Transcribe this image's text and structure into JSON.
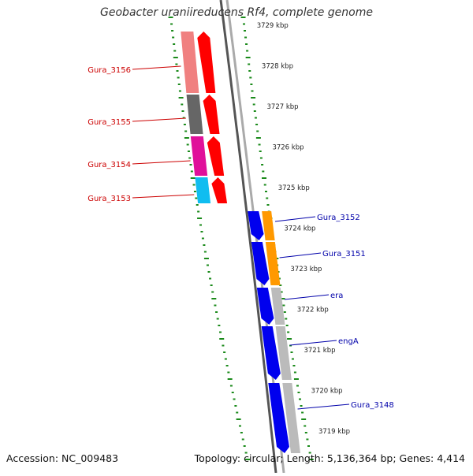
{
  "title": "Geobacter uraniireducens Rf4, complete genome",
  "footer": {
    "accession": "Accession: NC_009483",
    "summary": "Topology: circular; Length: 5,136,364 bp; Genes: 4,414"
  },
  "colors": {
    "forward_label": "#cc0000",
    "reverse_label": "#0000aa",
    "tick": "#1a8a1a",
    "backbone": "#808080",
    "strand_forward": "#ff0000",
    "strand_reverse": "#0000ee"
  },
  "scale_labels": [
    "3729 kbp",
    "3728 kbp",
    "3727 kbp",
    "3726 kbp",
    "3725 kbp",
    "3724 kbp",
    "3723 kbp",
    "3722 kbp",
    "3721 kbp",
    "3720 kbp",
    "3719 kbp"
  ],
  "forward_genes": [
    {
      "name": "Gura_3156",
      "color": "#f08080"
    },
    {
      "name": "Gura_3155",
      "color": "#666666"
    },
    {
      "name": "Gura_3154",
      "color": "#e0109a"
    },
    {
      "name": "Gura_3153",
      "color": "#10bdf0"
    }
  ],
  "reverse_genes": [
    {
      "name": "Gura_3152",
      "color": "#ff9900"
    },
    {
      "name": "Gura_3151",
      "color": "#ff9900"
    },
    {
      "name": "era",
      "color": "#bbbbbb"
    },
    {
      "name": "engA",
      "color": "#bbbbbb"
    },
    {
      "name": "Gura_3148",
      "color": "#bbbbbb"
    }
  ]
}
